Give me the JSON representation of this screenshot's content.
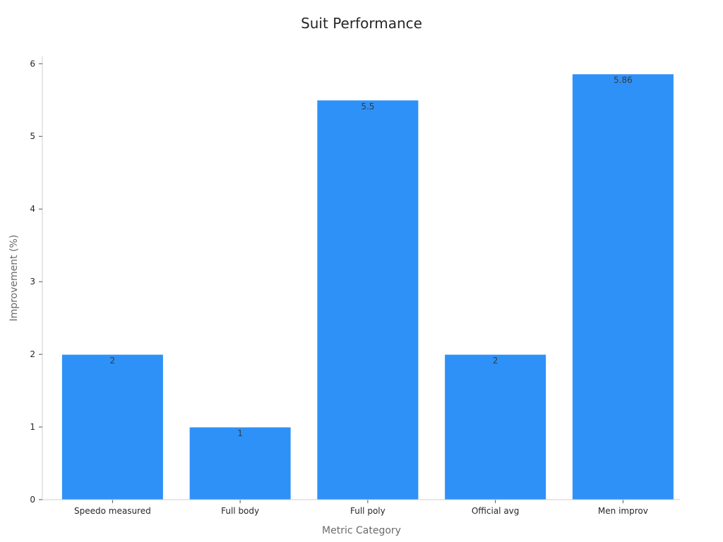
{
  "chart_data": {
    "type": "bar",
    "title": "Suit Performance",
    "xlabel": "Metric Category",
    "ylabel": "Improvement (%)",
    "categories": [
      "Speedo measured",
      "Full body",
      "Full poly",
      "Official avg",
      "Men improv"
    ],
    "values": [
      2,
      1,
      5.5,
      2,
      5.86
    ],
    "value_labels": [
      "2",
      "1",
      "5.5",
      "2",
      "5.86"
    ],
    "ylim": [
      0,
      6.1
    ],
    "yticks": [
      0,
      1,
      2,
      3,
      4,
      5,
      6
    ],
    "ytick_labels": [
      "0",
      "1",
      "2",
      "3",
      "4",
      "5",
      "6"
    ],
    "bar_color": "#2e91f8",
    "grid": false,
    "legend": false
  }
}
